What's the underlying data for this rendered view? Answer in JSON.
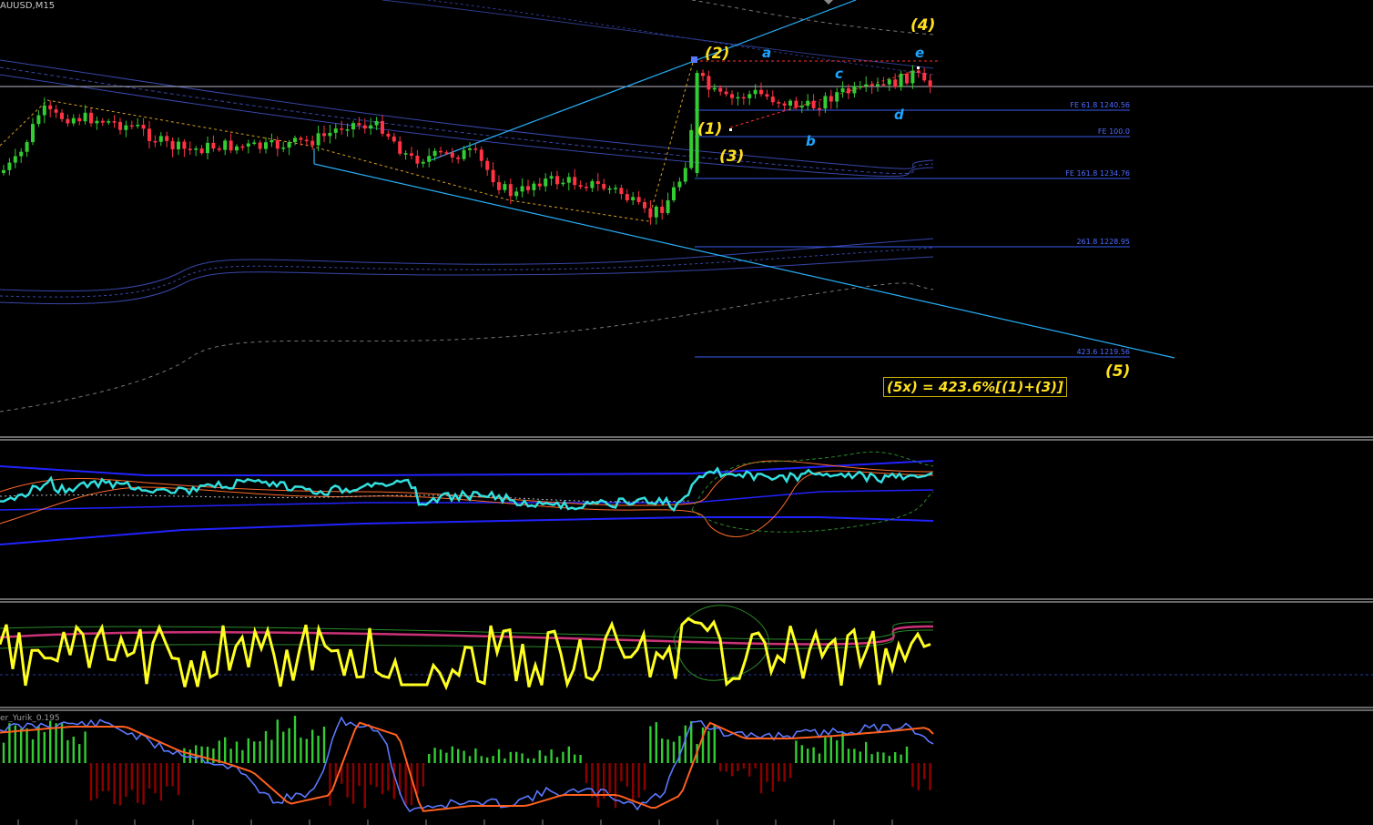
{
  "window": {
    "symbol_timeframe": "AUUSD,M15"
  },
  "indicator": {
    "name_label": "er_Yurik_0.195"
  },
  "fibo": [
    {
      "label": "FE 61.8 1240.56"
    },
    {
      "label": "FE 100.0"
    },
    {
      "label": "FE 161.8 1234.76"
    },
    {
      "label": "261.8 1228.95"
    },
    {
      "label": "423.6 1219.56"
    }
  ],
  "waves": {
    "w1": "(1)",
    "w2": "(2)",
    "w3": "(3)",
    "w4": "(4)",
    "w5": "(5)",
    "a": "a",
    "b": "b",
    "c": "c",
    "d": "d",
    "e": "e"
  },
  "formula": "(5x) = 423.6%[(1)+(3)]",
  "colors": {
    "background": "#000000",
    "bull_candle": "#33cc33",
    "bear_candle": "#ff3344",
    "wave_primary": "#ffe020",
    "wave_secondary": "#1ea5ff",
    "channel": "#27aef5",
    "fibo": "#4f6bff",
    "osc_cyan": "#33e0e0",
    "osc_yellow": "#ffff22",
    "macd_up": "#33cc33",
    "macd_down": "#8b0000"
  }
}
